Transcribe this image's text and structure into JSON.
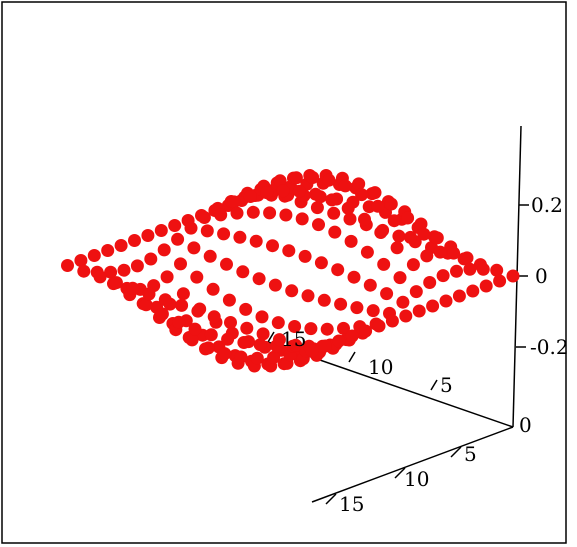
{
  "chart_data": {
    "type": "scatter",
    "title": "",
    "grid": false,
    "legend": "none",
    "marker_color": "#ee1111",
    "x_axis": {
      "ticks": [
        "5",
        "10",
        "15"
      ],
      "range": [
        0,
        15
      ]
    },
    "y_axis": {
      "ticks": [
        "0",
        "5",
        "10",
        "15"
      ],
      "range": [
        0,
        15
      ]
    },
    "z_axis": {
      "ticks": [
        "0.2",
        "0",
        "-0.2"
      ],
      "tick_values": [
        0.2,
        0,
        -0.2
      ],
      "range": [
        -0.25,
        0.25
      ]
    },
    "grid_size": 16,
    "surface": "z = 0.2 · sin(π·x/15) · sin(2π·y/15), sampled on a 16 × 16 grid"
  }
}
